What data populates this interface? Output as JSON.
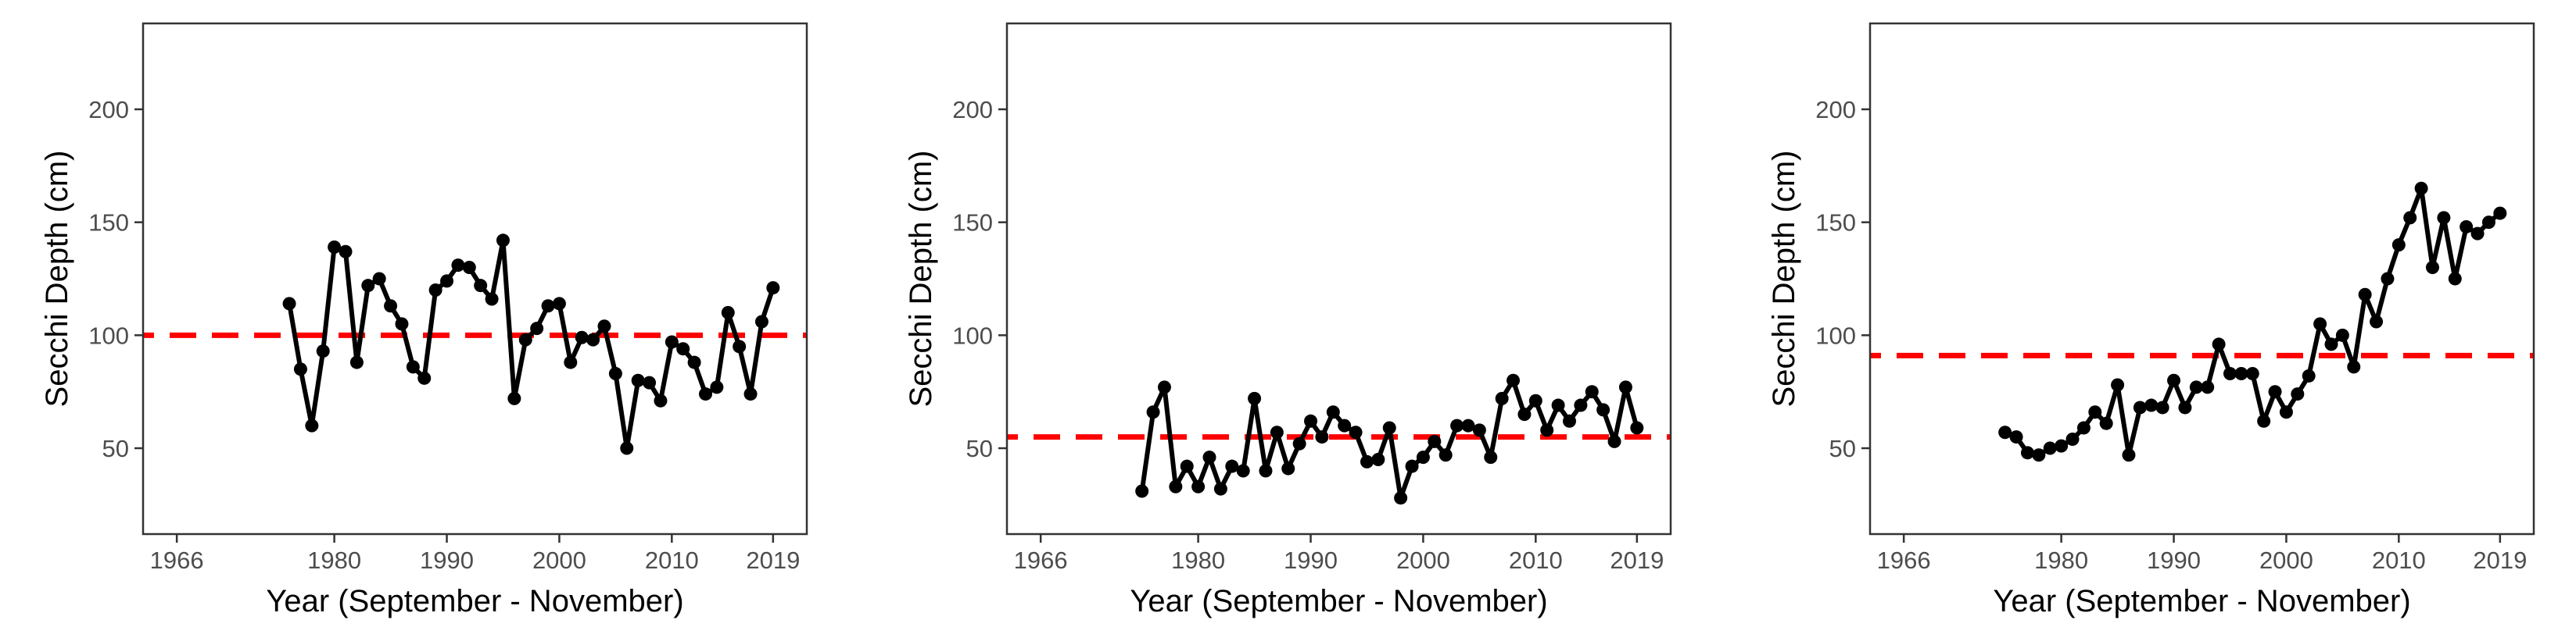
{
  "chart_data": [
    {
      "type": "line",
      "title": "",
      "xlabel": "Year (September - November)",
      "ylabel": "Secchi Depth (cm)",
      "xlim": [
        1963,
        2022
      ],
      "ylim": [
        12,
        238
      ],
      "x_ticks": [
        1966,
        1980,
        1990,
        2000,
        2010,
        2019
      ],
      "y_ticks": [
        50,
        100,
        150,
        200
      ],
      "x_tick_labels": [
        "1966",
        "1980",
        "1990",
        "2000",
        "2010",
        "2019"
      ],
      "y_tick_labels": [
        "50",
        "100",
        "150",
        "200"
      ],
      "reference_line": {
        "value": 100,
        "color": "#ff0000",
        "style": "dashed"
      },
      "series": [
        {
          "name": "Secchi Depth",
          "color": "#000000",
          "x": [
            1976,
            1977,
            1978,
            1979,
            1980,
            1981,
            1982,
            1983,
            1984,
            1985,
            1986,
            1987,
            1988,
            1989,
            1990,
            1991,
            1992,
            1993,
            1994,
            1995,
            1996,
            1997,
            1998,
            1999,
            2000,
            2001,
            2002,
            2003,
            2004,
            2005,
            2006,
            2007,
            2008,
            2009,
            2010,
            2011,
            2012,
            2013,
            2014,
            2015,
            2016,
            2017,
            2018,
            2019
          ],
          "values": [
            114,
            85,
            60,
            93,
            139,
            137,
            88,
            122,
            125,
            113,
            105,
            86,
            81,
            120,
            124,
            131,
            130,
            122,
            116,
            142,
            72,
            98,
            103,
            113,
            114,
            88,
            99,
            98,
            104,
            83,
            50,
            80,
            79,
            71,
            97,
            94,
            88,
            74,
            77,
            110,
            95,
            74,
            106,
            121
          ]
        }
      ]
    },
    {
      "type": "line",
      "title": "",
      "xlabel": "Year (September - November)",
      "ylabel": "Secchi Depth (cm)",
      "xlim": [
        1963,
        2022
      ],
      "ylim": [
        12,
        238
      ],
      "x_ticks": [
        1966,
        1980,
        1990,
        2000,
        2010,
        2019
      ],
      "y_ticks": [
        50,
        100,
        150,
        200
      ],
      "x_tick_labels": [
        "1966",
        "1980",
        "1990",
        "2000",
        "2010",
        "2019"
      ],
      "y_tick_labels": [
        "50",
        "100",
        "150",
        "200"
      ],
      "reference_line": {
        "value": 55,
        "color": "#ff0000",
        "style": "dashed"
      },
      "series": [
        {
          "name": "Secchi Depth",
          "color": "#000000",
          "x": [
            1975,
            1976,
            1977,
            1978,
            1979,
            1980,
            1981,
            1982,
            1983,
            1984,
            1985,
            1986,
            1987,
            1988,
            1989,
            1990,
            1991,
            1992,
            1993,
            1994,
            1995,
            1996,
            1997,
            1998,
            1999,
            2000,
            2001,
            2002,
            2003,
            2004,
            2005,
            2006,
            2007,
            2008,
            2009,
            2010,
            2011,
            2012,
            2013,
            2014,
            2015,
            2016,
            2017,
            2018,
            2019
          ],
          "values": [
            31,
            66,
            77,
            33,
            42,
            33,
            46,
            32,
            42,
            40,
            72,
            40,
            57,
            41,
            52,
            62,
            55,
            66,
            60,
            57,
            44,
            45,
            59,
            28,
            42,
            46,
            53,
            47,
            60,
            60,
            58,
            46,
            72,
            80,
            65,
            71,
            58,
            69,
            62,
            69,
            75,
            67,
            53,
            77,
            59
          ]
        }
      ]
    },
    {
      "type": "line",
      "title": "",
      "xlabel": "Year (September - November)",
      "ylabel": "Secchi Depth (cm)",
      "xlim": [
        1963,
        2022
      ],
      "ylim": [
        12,
        238
      ],
      "x_ticks": [
        1966,
        1980,
        1990,
        2000,
        2010,
        2019
      ],
      "y_ticks": [
        50,
        100,
        150,
        200
      ],
      "x_tick_labels": [
        "1966",
        "1980",
        "1990",
        "2000",
        "2010",
        "2019"
      ],
      "y_tick_labels": [
        "50",
        "100",
        "150",
        "200"
      ],
      "reference_line": {
        "value": 91,
        "color": "#ff0000",
        "style": "dashed"
      },
      "series": [
        {
          "name": "Secchi Depth",
          "color": "#000000",
          "x": [
            1975,
            1976,
            1977,
            1978,
            1979,
            1980,
            1981,
            1982,
            1983,
            1984,
            1985,
            1986,
            1987,
            1988,
            1989,
            1990,
            1991,
            1992,
            1993,
            1994,
            1995,
            1996,
            1997,
            1998,
            1999,
            2000,
            2001,
            2002,
            2003,
            2004,
            2005,
            2006,
            2007,
            2008,
            2009,
            2010,
            2011,
            2012,
            2013,
            2014,
            2015,
            2016,
            2017,
            2018,
            2019
          ],
          "values": [
            57,
            55,
            48,
            47,
            50,
            51,
            54,
            59,
            66,
            61,
            78,
            47,
            68,
            69,
            68,
            80,
            68,
            77,
            77,
            96,
            83,
            83,
            83,
            62,
            75,
            66,
            74,
            82,
            105,
            96,
            100,
            86,
            118,
            106,
            125,
            140,
            152,
            165,
            130,
            152,
            125,
            148,
            145,
            150,
            154
          ]
        }
      ]
    }
  ]
}
